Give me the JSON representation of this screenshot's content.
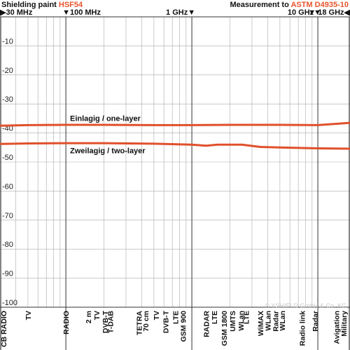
{
  "header": {
    "left_prefix": "Shielding paint ",
    "left_product": "HSF54",
    "right_prefix": "Measurement to ",
    "right_standard": "ASTM D4935-10"
  },
  "colors": {
    "accent": "#e8542c",
    "grid": "#aaaaaa",
    "major_grid": "#333333",
    "line": "#e0502b"
  },
  "copyright": "© YSHIELD GmbH & Co. KG",
  "chart_data": {
    "type": "line",
    "x_scale": "log",
    "x_unit": "MHz",
    "xlim": [
      30,
      18000
    ],
    "ylim": [
      -100,
      0
    ],
    "y_ticks": [
      -10,
      -20,
      -30,
      -40,
      -50,
      -60,
      -70,
      -80,
      -90,
      -100
    ],
    "y_tick_labels": [
      "-10",
      "-20",
      "-30",
      "-40",
      "-50",
      "-60",
      "-70",
      "-80",
      "-90",
      "-100"
    ],
    "x_tick_labels": [
      {
        "label": "▶30 MHz",
        "value": 30,
        "align": "start"
      },
      {
        "label": "▼100 MHz",
        "value": 100,
        "align": "start"
      },
      {
        "label": "1 GHz▼",
        "value": 1000,
        "align": "end"
      },
      {
        "label": "10 GHz▼",
        "value": 10000,
        "align": "end"
      },
      {
        "label": "▼ 18 GHz◀",
        "value": 18000,
        "align": "end"
      }
    ],
    "major_gridlines": [
      100,
      1000,
      10000
    ],
    "grid": true,
    "series": [
      {
        "name": "Einlagig / one-layer",
        "x": [
          30,
          50,
          100,
          200,
          500,
          1000,
          2000,
          5000,
          10000,
          18000
        ],
        "y": [
          -37.5,
          -37.3,
          -37.2,
          -37.2,
          -37.3,
          -37.3,
          -37.2,
          -37.2,
          -37.3,
          -36.5
        ]
      },
      {
        "name": "Zweilagig / two-layer",
        "x": [
          30,
          50,
          100,
          200,
          500,
          1000,
          1300,
          1600,
          2500,
          3500,
          5000,
          10000,
          18000
        ],
        "y": [
          -43.8,
          -43.6,
          -43.5,
          -43.5,
          -43.7,
          -44.0,
          -44.4,
          -44.0,
          -44.0,
          -44.8,
          -45.0,
          -45.3,
          -45.4
        ]
      }
    ],
    "services": [
      {
        "f": 27,
        "label": "CB RADIO"
      },
      {
        "f": 50,
        "label": "TV"
      },
      {
        "f": 100,
        "label": "RADIO"
      },
      {
        "f": 150,
        "label": "2 m"
      },
      {
        "f": 175,
        "label": "TV"
      },
      {
        "f": 205,
        "label": "DVB-T"
      },
      {
        "f": 225,
        "label": "T-DAB"
      },
      {
        "f": 380,
        "label": "TETRA"
      },
      {
        "f": 430,
        "label": "70 cm"
      },
      {
        "f": 520,
        "label": "TV"
      },
      {
        "f": 620,
        "label": "DVB-T"
      },
      {
        "f": 740,
        "label": "LTE"
      },
      {
        "f": 850,
        "label": "GSM 900"
      },
      {
        "f": 1300,
        "label": "RADAR"
      },
      {
        "f": 1500,
        "label": "LTE"
      },
      {
        "f": 1800,
        "label": "GSM 1800"
      },
      {
        "f": 2100,
        "label": "UMTS"
      },
      {
        "f": 2450,
        "label": "WLan"
      },
      {
        "f": 2700,
        "label": "LTE"
      },
      {
        "f": 3500,
        "label": "WiMAX"
      },
      {
        "f": 4000,
        "label": "WLan"
      },
      {
        "f": 4600,
        "label": "Radar"
      },
      {
        "f": 5200,
        "label": "WLan"
      },
      {
        "f": 7500,
        "label": "Radio link"
      },
      {
        "f": 9500,
        "label": "Radar"
      },
      {
        "f": 14000,
        "label": "Avigation"
      },
      {
        "f": 18000,
        "label": "Military"
      }
    ]
  }
}
